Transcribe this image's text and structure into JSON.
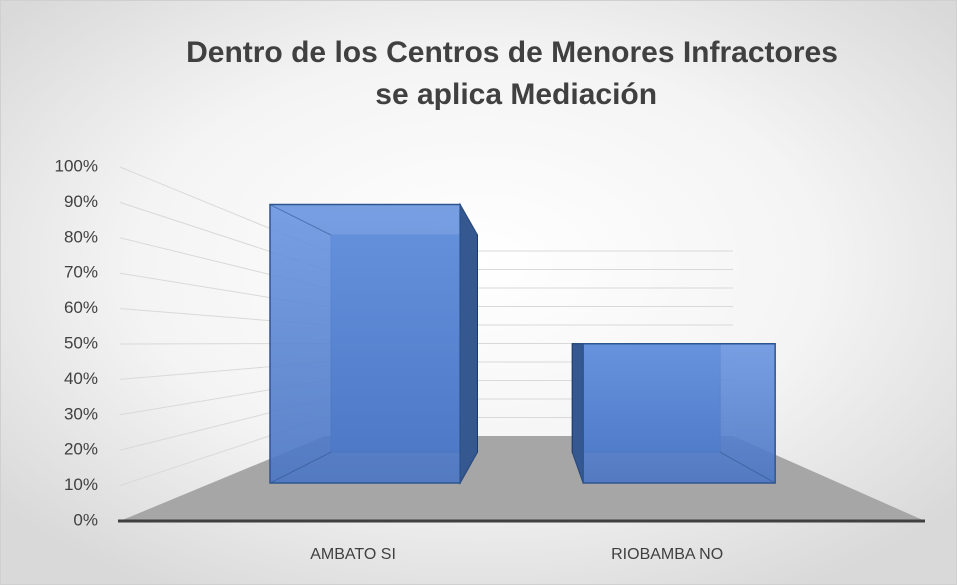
{
  "chart_data": {
    "type": "bar3d",
    "title": "Dentro de los Centros de Menores Infractores se aplica Mediación",
    "categories": [
      "AMBATO SI",
      "RIOBAMBA NO"
    ],
    "values": [
      100,
      50
    ],
    "color": "#4f7fd6",
    "ylim": [
      0,
      100
    ],
    "yticks": [
      {
        "value": 0,
        "label": "0%"
      },
      {
        "value": 10,
        "label": "10%"
      },
      {
        "value": 20,
        "label": "20%"
      },
      {
        "value": 30,
        "label": "30%"
      },
      {
        "value": 40,
        "label": "40%"
      },
      {
        "value": 50,
        "label": "50%"
      },
      {
        "value": 60,
        "label": "60%"
      },
      {
        "value": 70,
        "label": "70%"
      },
      {
        "value": 80,
        "label": "80%"
      },
      {
        "value": 90,
        "label": "90%"
      },
      {
        "value": 100,
        "label": "100%"
      }
    ],
    "grid": true
  }
}
